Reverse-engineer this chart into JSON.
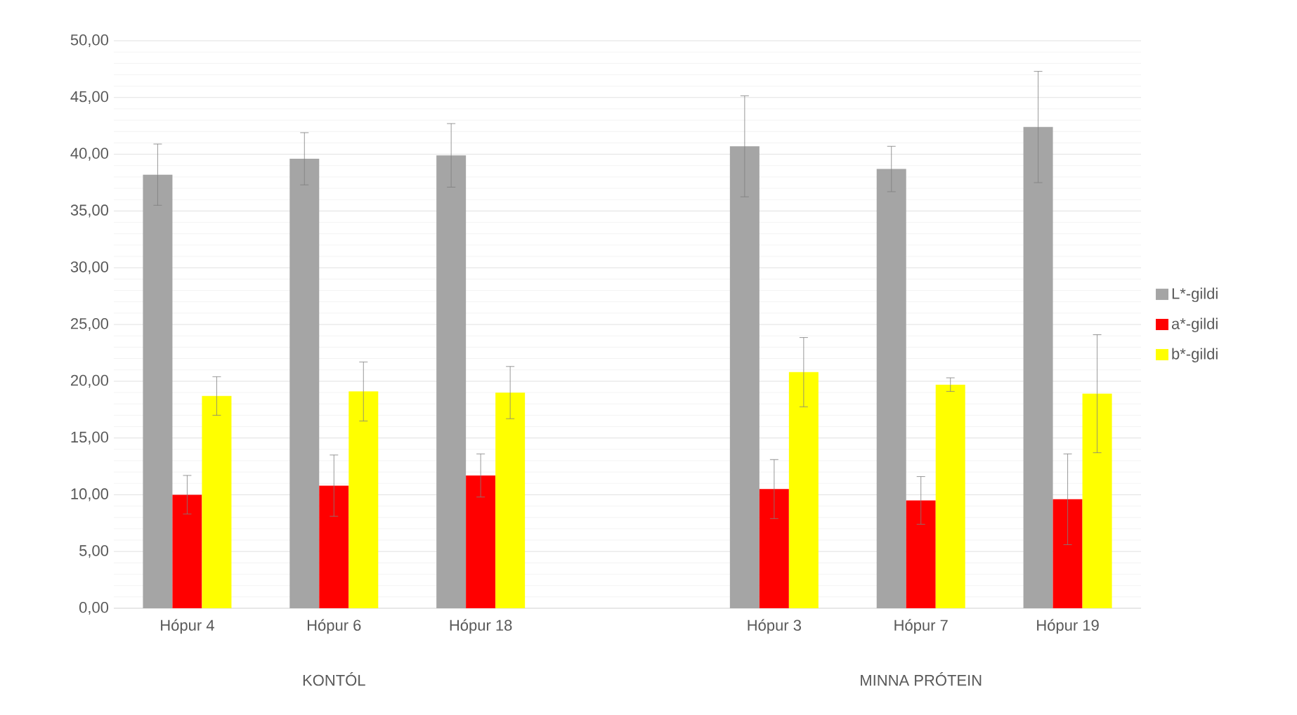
{
  "chart_data": {
    "type": "bar",
    "categories": [
      "Hópur 4",
      "Hópur 6",
      "Hópur 18",
      null,
      "Hópur 3",
      "Hópur 7",
      "Hópur 19"
    ],
    "series": [
      {
        "name": "L*-gildi",
        "color": "#a5a5a5",
        "values": [
          38.2,
          39.6,
          39.9,
          null,
          40.7,
          38.7,
          42.4
        ],
        "errors": [
          2.7,
          2.3,
          2.8,
          null,
          4.45,
          2.0,
          4.9
        ]
      },
      {
        "name": "a*-gildi",
        "color": "#ff0000",
        "values": [
          10.0,
          10.8,
          11.7,
          null,
          10.5,
          9.5,
          9.6
        ],
        "errors": [
          1.7,
          2.7,
          1.9,
          null,
          2.6,
          2.1,
          4.0
        ]
      },
      {
        "name": "b*-gildi",
        "color": "#ffff00",
        "values": [
          18.7,
          19.1,
          19.0,
          null,
          20.8,
          19.7,
          18.9
        ],
        "errors": [
          1.7,
          2.6,
          2.3,
          null,
          3.05,
          0.6,
          5.2
        ]
      }
    ],
    "ylim": [
      0,
      50
    ],
    "yticks": [
      {
        "value": 0,
        "label": "0,00"
      },
      {
        "value": 5,
        "label": "5,00"
      },
      {
        "value": 10,
        "label": "10,00"
      },
      {
        "value": 15,
        "label": "15,00"
      },
      {
        "value": 20,
        "label": "20,00"
      },
      {
        "value": 25,
        "label": "25,00"
      },
      {
        "value": 30,
        "label": "30,00"
      },
      {
        "value": 35,
        "label": "35,00"
      },
      {
        "value": 40,
        "label": "40,00"
      },
      {
        "value": 45,
        "label": "45,00"
      },
      {
        "value": 50,
        "label": "50,00"
      }
    ],
    "grid": "y",
    "legend": "right",
    "annotations": [
      "KONTÓL",
      "MINNA PRÓTEIN"
    ]
  }
}
